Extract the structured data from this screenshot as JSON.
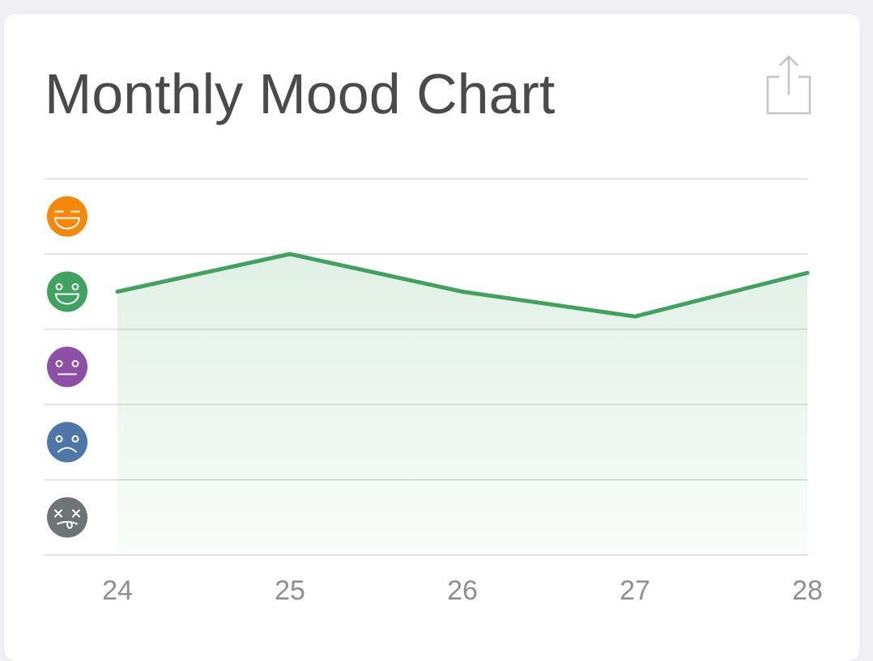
{
  "header": {
    "title": "Monthly Mood Chart",
    "share_icon": "share-icon"
  },
  "colors": {
    "line": "#41a260",
    "grid": "#c8c8c8",
    "tick_text": "#8e8e93",
    "title": "#4a4a4a"
  },
  "chart_data": {
    "type": "area",
    "x": [
      "24",
      "25",
      "26",
      "27",
      "28"
    ],
    "levels": [
      {
        "level": 5,
        "icon": "laughing-face-icon",
        "color": "#f5870a"
      },
      {
        "level": 4,
        "icon": "happy-face-icon",
        "color": "#3fa35f"
      },
      {
        "level": 3,
        "icon": "neutral-face-icon",
        "color": "#8e4fa6"
      },
      {
        "level": 2,
        "icon": "sad-face-icon",
        "color": "#4f76a8"
      },
      {
        "level": 1,
        "icon": "dizzy-face-icon",
        "color": "#6c7475"
      }
    ],
    "series": [
      {
        "values": [
          4.0,
          4.5,
          4.0,
          3.67,
          4.25
        ]
      }
    ],
    "ylim": [
      0.5,
      5.5
    ],
    "grid": true,
    "legend": "none"
  }
}
